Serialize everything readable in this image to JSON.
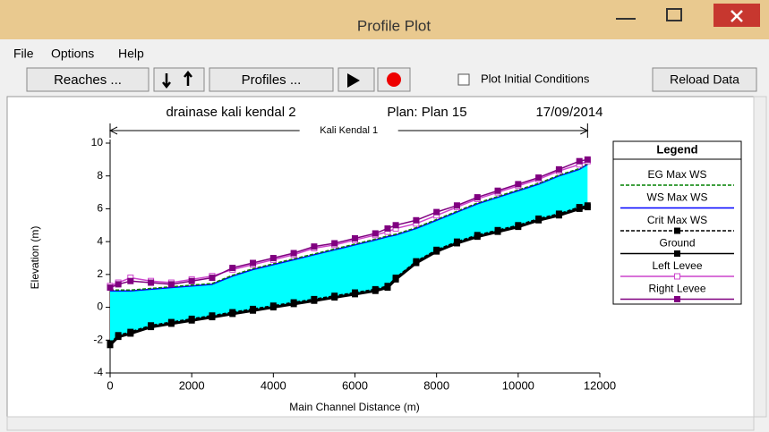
{
  "window": {
    "title": "Profile Plot",
    "menu": [
      "File",
      "Options",
      "Help"
    ],
    "toolbar": {
      "reaches": "Reaches ...",
      "profiles": "Profiles ...",
      "initial": "Plot Initial Conditions",
      "reload": "Reload Data"
    }
  },
  "chart_data": {
    "type": "line",
    "title": "drainase kali kendal 2",
    "plan": "Plan: Plan 15",
    "date": "17/09/2014",
    "annotation": "Kali Kendal 1",
    "xlabel": "Main Channel Distance (m)",
    "ylabel": "Elevation (m)",
    "legend_title": "Legend",
    "x": [
      0,
      200,
      500,
      1000,
      1500,
      2000,
      2500,
      3000,
      3500,
      4000,
      4500,
      5000,
      5500,
      6000,
      6500,
      6800,
      7000,
      7500,
      8000,
      8500,
      9000,
      9500,
      10000,
      10500,
      11000,
      11500,
      11700
    ],
    "series": [
      {
        "name": "EG Max WS",
        "color": "#008000",
        "dash": true,
        "marker": false,
        "values": [
          1.05,
          1.05,
          1.05,
          1.15,
          1.25,
          1.35,
          1.45,
          1.95,
          2.35,
          2.65,
          2.95,
          3.25,
          3.55,
          3.85,
          4.15,
          4.35,
          4.45,
          4.85,
          5.35,
          5.85,
          6.35,
          6.75,
          7.15,
          7.55,
          8.05,
          8.45,
          8.75
        ]
      },
      {
        "name": "WS Max WS",
        "color": "#0000ff",
        "dash": false,
        "marker": false,
        "values": [
          1.0,
          1.0,
          1.0,
          1.1,
          1.2,
          1.3,
          1.4,
          1.9,
          2.3,
          2.6,
          2.9,
          3.2,
          3.5,
          3.8,
          4.1,
          4.3,
          4.4,
          4.8,
          5.3,
          5.8,
          6.3,
          6.7,
          7.1,
          7.5,
          8.0,
          8.4,
          8.7
        ]
      },
      {
        "name": "Crit Max WS",
        "color": "#000000",
        "dash": true,
        "marker": true,
        "values": [
          -2.2,
          -1.7,
          -1.5,
          -1.1,
          -0.9,
          -0.7,
          -0.5,
          -0.3,
          -0.1,
          0.1,
          0.3,
          0.5,
          0.7,
          0.9,
          1.1,
          1.3,
          1.8,
          2.8,
          3.5,
          4.0,
          4.4,
          4.7,
          5.0,
          5.4,
          5.7,
          6.1,
          6.2
        ]
      },
      {
        "name": "Ground",
        "color": "#000000",
        "dash": false,
        "marker": true,
        "values": [
          -2.3,
          -1.8,
          -1.6,
          -1.2,
          -1.0,
          -0.8,
          -0.6,
          -0.4,
          -0.2,
          0.0,
          0.2,
          0.4,
          0.6,
          0.8,
          1.0,
          1.2,
          1.7,
          2.7,
          3.4,
          3.9,
          4.3,
          4.6,
          4.9,
          5.3,
          5.6,
          6.0,
          6.1
        ]
      },
      {
        "name": "Left Levee",
        "color": "#cc44cc",
        "dash": false,
        "marker": true,
        "values": [
          1.3,
          1.5,
          1.8,
          1.6,
          1.5,
          1.7,
          1.9,
          2.3,
          2.6,
          2.9,
          3.2,
          3.6,
          3.8,
          4.1,
          4.4,
          4.6,
          4.8,
          5.1,
          5.6,
          6.1,
          6.6,
          7.0,
          7.4,
          7.8,
          8.3,
          8.7,
          8.9
        ]
      },
      {
        "name": "Right Levee",
        "color": "#800080",
        "dash": false,
        "marker": true,
        "values": [
          1.2,
          1.4,
          1.6,
          1.5,
          1.4,
          1.6,
          1.8,
          2.4,
          2.7,
          3.0,
          3.3,
          3.7,
          3.9,
          4.2,
          4.5,
          4.8,
          5.0,
          5.3,
          5.8,
          6.2,
          6.7,
          7.1,
          7.5,
          7.9,
          8.4,
          8.9,
          9.0
        ]
      }
    ],
    "fill": "#00ffff",
    "xlim": [
      0,
      12000
    ],
    "xticks": [
      0,
      2000,
      4000,
      6000,
      8000,
      10000,
      12000
    ],
    "ylim": [
      -4,
      10
    ],
    "yticks": [
      -4,
      -2,
      0,
      2,
      4,
      6,
      8,
      10
    ]
  }
}
